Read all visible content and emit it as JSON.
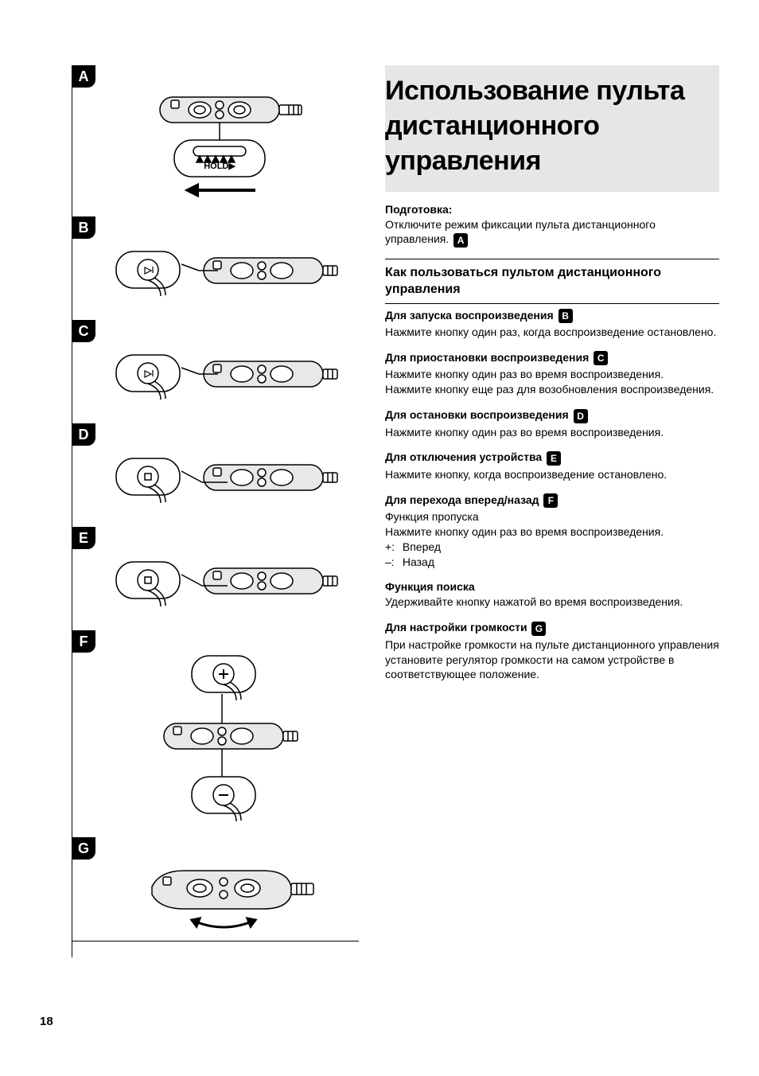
{
  "page_number": "18",
  "labels": {
    "A": "A",
    "B": "B",
    "C": "C",
    "D": "D",
    "E": "E",
    "F": "F",
    "G": "G"
  },
  "diagram_hold_text": "HOLD",
  "title": "Использование пульта дистан­ционного управления",
  "prep": {
    "label": "Подготовка:",
    "text": "Отключите режим фиксации пульта дистанцион­ного управления.",
    "ref": "A"
  },
  "section_heading": "Как пользоваться пультом дистанционного управления",
  "items": [
    {
      "title": "Для запуска воспроизведения",
      "ref": "B",
      "body": "Нажмите кнопку один раз, когда воспроизведение остановлено."
    },
    {
      "title": "Для приостановки воспроизведения",
      "ref": "C",
      "body": "Нажмите кнопку один раз во время воспроизве­дения.\nНажмите кнопку еще раз для возобновления вос­произведения."
    },
    {
      "title": "Для остановки воспроизведения",
      "ref": "D",
      "body": "Нажмите кнопку один раз во время воспроизве­дения."
    },
    {
      "title": "Для отключения устройства",
      "ref": "E",
      "body": "Нажмите кнопку, когда воспроизведение останов­лено."
    },
    {
      "title": "Для перехода вперед/назад",
      "ref": "F",
      "body": "Функция пропуска\nНажмите кнопку один раз во время воспроизве­дения.",
      "plusminus": {
        "plus": "Вперед",
        "minus": "Назад"
      }
    },
    {
      "title": "Функция поиска",
      "ref": null,
      "body": "Удерживайте кнопку нажатой во время воспроиз­ведения."
    },
    {
      "title": "Для настройки громкости",
      "ref": "G",
      "body": "При настройке громкости на пульте дистанционно­го управления установите регулятор громкости на самом устройстве в соответствующее положение."
    }
  ],
  "pm_signs": {
    "plus": "+:",
    "minus": "–:"
  },
  "colors": {
    "text": "#000000",
    "bg": "#ffffff",
    "band": "#e6e6e6",
    "illustration_fill": "#e8e8e8",
    "illustration_stroke": "#000000"
  },
  "diagram_heights": {
    "A": 190,
    "B": 130,
    "C": 130,
    "D": 130,
    "E": 130,
    "F": 260,
    "G": 130
  }
}
